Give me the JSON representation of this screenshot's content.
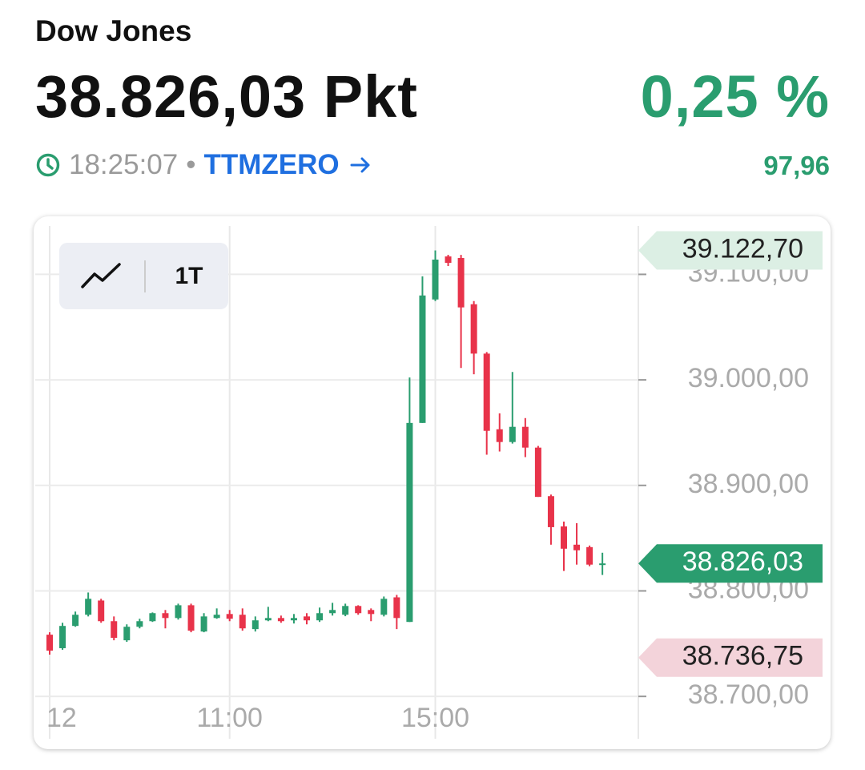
{
  "header": {
    "title": "Dow Jones",
    "price": "38.826,03 Pkt",
    "change_percent": "0,25 %",
    "time": "18:25:07",
    "separator": "•",
    "source": "TTMZERO",
    "change_points": "97,96"
  },
  "controls": {
    "range": "1T"
  },
  "chart_data": {
    "type": "candlestick",
    "categories": [
      null,
      null,
      null,
      null,
      null,
      null,
      null,
      null,
      null,
      null,
      null,
      null,
      null,
      null,
      null,
      null,
      null,
      null,
      null,
      null,
      null,
      null,
      null,
      null,
      null,
      null,
      null,
      null,
      null,
      null,
      null,
      null,
      null,
      null,
      null,
      null,
      null,
      null,
      null,
      null,
      null,
      null,
      null,
      null
    ],
    "open": [
      38758.5,
      38745.7,
      38766.8,
      38777.4,
      38790.9,
      38771.3,
      38753.2,
      38766.0,
      38771.3,
      38778.9,
      38774.3,
      38786.4,
      38761.5,
      38774.3,
      38778.1,
      38777.4,
      38763.8,
      38772.1,
      38774.3,
      38772.1,
      38775.8,
      38772.1,
      38778.9,
      38777.4,
      38785.7,
      38781.9,
      38777.4,
      38793.9,
      38770.6,
      38959.2,
      39076.2,
      39117.0,
      39115.5,
      39071.7,
      39024.9,
      38953.2,
      38941.1,
      38955.5,
      38935.8,
      38889.8,
      38861.1,
      38843.8,
      38841.5,
      38824.9
    ],
    "high": [
      38760.8,
      38769.8,
      38780.4,
      38798.5,
      38792.5,
      38775.8,
      38768.3,
      38773.6,
      38779.6,
      38781.9,
      38787.9,
      38787.9,
      38778.9,
      38783.4,
      38781.9,
      38783.4,
      38775.8,
      38784.9,
      38776.6,
      38778.1,
      38778.9,
      38784.2,
      38788.7,
      38787.9,
      38786.4,
      38783.4,
      38794.7,
      38796.2,
      39002.3,
      39098.1,
      39122.7,
      39118.5,
      39118.5,
      39074.7,
      39026.4,
      38968.3,
      39007.5,
      38963.8,
      38937.4,
      38891.3,
      38865.7,
      38864.2,
      38843.0,
      38836.2
    ],
    "low": [
      38739.6,
      38744.2,
      38766.0,
      38775.8,
      38769.8,
      38753.2,
      38751.7,
      38764.5,
      38770.6,
      38764.5,
      38772.8,
      38760.8,
      38760.8,
      38773.6,
      38771.3,
      38762.3,
      38761.5,
      38771.3,
      38769.8,
      38769.1,
      38768.3,
      38770.6,
      38776.6,
      38776.0,
      38777.4,
      38771.3,
      38775.8,
      38763.8,
      38770.6,
      38959.2,
      39074.7,
      39107.9,
      39011.3,
      39005.3,
      38929.1,
      38932.1,
      38939.6,
      38926.8,
      38889.1,
      38843.8,
      38818.9,
      38824.9,
      38823.4,
      38815.1
    ],
    "close": [
      38743.4,
      38766.8,
      38777.4,
      38792.5,
      38771.3,
      38755.5,
      38766.0,
      38771.3,
      38778.9,
      38774.3,
      38786.4,
      38762.3,
      38775.8,
      38777.4,
      38773.6,
      38764.5,
      38772.1,
      38774.3,
      38771.3,
      38774.3,
      38772.1,
      38778.9,
      38781.9,
      38785.7,
      38778.9,
      38778.1,
      38792.5,
      38774.3,
      38959.2,
      39080.0,
      39114.0,
      39110.9,
      39068.7,
      39024.9,
      38951.7,
      38941.1,
      38955.5,
      38935.8,
      38889.1,
      38860.4,
      38840.0,
      38838.5,
      38824.9,
      38826.03
    ],
    "up_color": "#2a9d6f",
    "down_color": "#e8334a",
    "ylim": [
      38650,
      39155
    ],
    "yticks": [
      {
        "value": 38700,
        "label": "38.700,00"
      },
      {
        "value": 38800,
        "label": "38.800,00"
      },
      {
        "value": 38900,
        "label": "38.900,00"
      },
      {
        "value": 39000,
        "label": "39.000,00"
      },
      {
        "value": 39100,
        "label": "39.100,00"
      }
    ],
    "xticks": [
      {
        "value": 0,
        "label": "12"
      },
      {
        "value": 14,
        "label": "11:00"
      },
      {
        "value": 30,
        "label": "15:00"
      }
    ],
    "grid": true,
    "price_tags": [
      {
        "value": 39122.7,
        "label": "39.122,70",
        "color": "#dcefe4",
        "text_color": "#222"
      },
      {
        "value": 38826.03,
        "label": "38.826,03",
        "color": "#2a9d6f",
        "text_color": "#ffffff"
      },
      {
        "value": 38736.75,
        "label": "38.736,75",
        "color": "#f3d3da",
        "text_color": "#222"
      }
    ]
  }
}
